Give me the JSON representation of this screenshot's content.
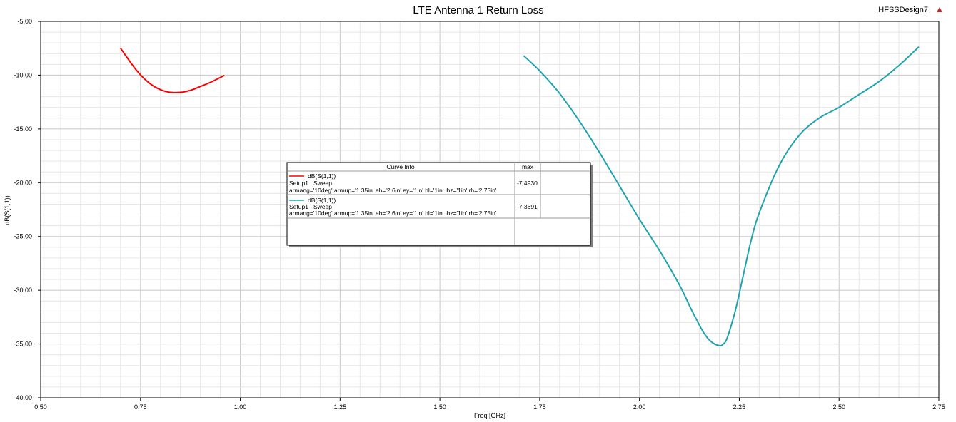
{
  "header": {
    "title": "LTE Antenna 1 Return Loss",
    "design_name": "HFSSDesign7"
  },
  "legend": {
    "header_curve_info": "Curve Info",
    "header_max": "max",
    "entries": [
      {
        "name": "dB(S(1,1))",
        "setup": "Setup1 : Sweep",
        "params": "armang='10deg' armup='1.35in' eh='2.6in' ey='1in' hl='1in' lbz='1in' rh='2.75in'",
        "max": "-7.4930",
        "color": "#ff0000"
      },
      {
        "name": "dB(S(1,1))",
        "setup": "Setup1 : Sweep",
        "params": "armang='10deg' armup='1.35in' eh='2.6in' ey='1in' hl='1in' lbz='1in' rh='2.75in'",
        "max": "-7.3691",
        "color": "#1fa3b0"
      }
    ]
  },
  "chart_data": {
    "type": "line",
    "title": "LTE Antenna 1 Return Loss",
    "xlabel": "Freq [GHz]",
    "ylabel": "dB(S(1,1))",
    "xlim": [
      0.5,
      2.75
    ],
    "ylim": [
      -40,
      -5
    ],
    "grid": true,
    "legend_position": "center",
    "x_ticks": [
      "0.50",
      "0.75",
      "1.00",
      "1.25",
      "1.50",
      "1.75",
      "2.00",
      "2.25",
      "2.50",
      "2.75"
    ],
    "y_ticks": [
      "-5.00",
      "-10.00",
      "-15.00",
      "-20.00",
      "-25.00",
      "-30.00",
      "-35.00",
      "-40.00"
    ],
    "series": [
      {
        "name": "dB(S(1,1))",
        "color": "#ff0000",
        "x": [
          0.7,
          0.72,
          0.74,
          0.76,
          0.78,
          0.8,
          0.82,
          0.84,
          0.86,
          0.88,
          0.9,
          0.92,
          0.94,
          0.96
        ],
        "y": [
          -7.49,
          -8.55,
          -9.55,
          -10.35,
          -10.95,
          -11.35,
          -11.57,
          -11.62,
          -11.55,
          -11.35,
          -11.05,
          -10.75,
          -10.4,
          -10.02
        ]
      },
      {
        "name": "dB(S(1,1))",
        "color": "#1fa3b0",
        "x": [
          1.71,
          1.75,
          1.8,
          1.85,
          1.9,
          1.95,
          2.0,
          2.05,
          2.1,
          2.13,
          2.16,
          2.18,
          2.2,
          2.21,
          2.22,
          2.24,
          2.26,
          2.28,
          2.3,
          2.35,
          2.4,
          2.45,
          2.5,
          2.55,
          2.6,
          2.65,
          2.7
        ],
        "y": [
          -8.2,
          -9.6,
          -11.7,
          -14.3,
          -17.2,
          -20.3,
          -23.4,
          -26.3,
          -29.5,
          -31.8,
          -33.9,
          -34.8,
          -35.15,
          -35.0,
          -34.4,
          -31.9,
          -28.6,
          -25.3,
          -22.8,
          -18.4,
          -15.6,
          -14.0,
          -13.0,
          -11.8,
          -10.6,
          -9.1,
          -7.37
        ]
      }
    ]
  }
}
